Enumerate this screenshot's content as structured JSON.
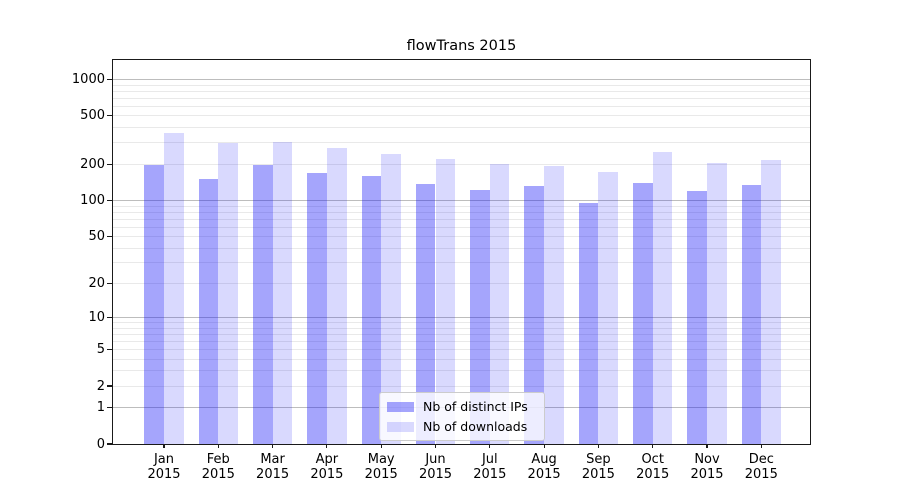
{
  "chart_data": {
    "type": "bar",
    "title": "flowTrans 2015",
    "categories": [
      "Jan",
      "Feb",
      "Mar",
      "Apr",
      "May",
      "Jun",
      "Jul",
      "Aug",
      "Sep",
      "Oct",
      "Nov",
      "Dec"
    ],
    "category_year": "2015",
    "series": [
      {
        "name": "Nb of distinct IPs",
        "color": "rgba(18,18,246,0.38)",
        "values": [
          196,
          152,
          196,
          168,
          161,
          137,
          122,
          132,
          96,
          140,
          120,
          135
        ]
      },
      {
        "name": "Nb of downloads",
        "color": "rgba(18,18,246,0.16)",
        "values": [
          362,
          297,
          305,
          270,
          245,
          220,
          199,
          193,
          173,
          253,
          206,
          218
        ]
      }
    ],
    "yscale": "log1p",
    "ylim": [
      0,
      1445
    ],
    "yticks": [
      0,
      1,
      2,
      5,
      10,
      20,
      50,
      100,
      200,
      500,
      1000
    ],
    "major_gridlines": [
      1,
      10,
      100,
      1000
    ],
    "minor_grid_decades": [
      1,
      10,
      100
    ],
    "grid": "on",
    "legend": {
      "position": "lower center",
      "frame": true
    }
  }
}
